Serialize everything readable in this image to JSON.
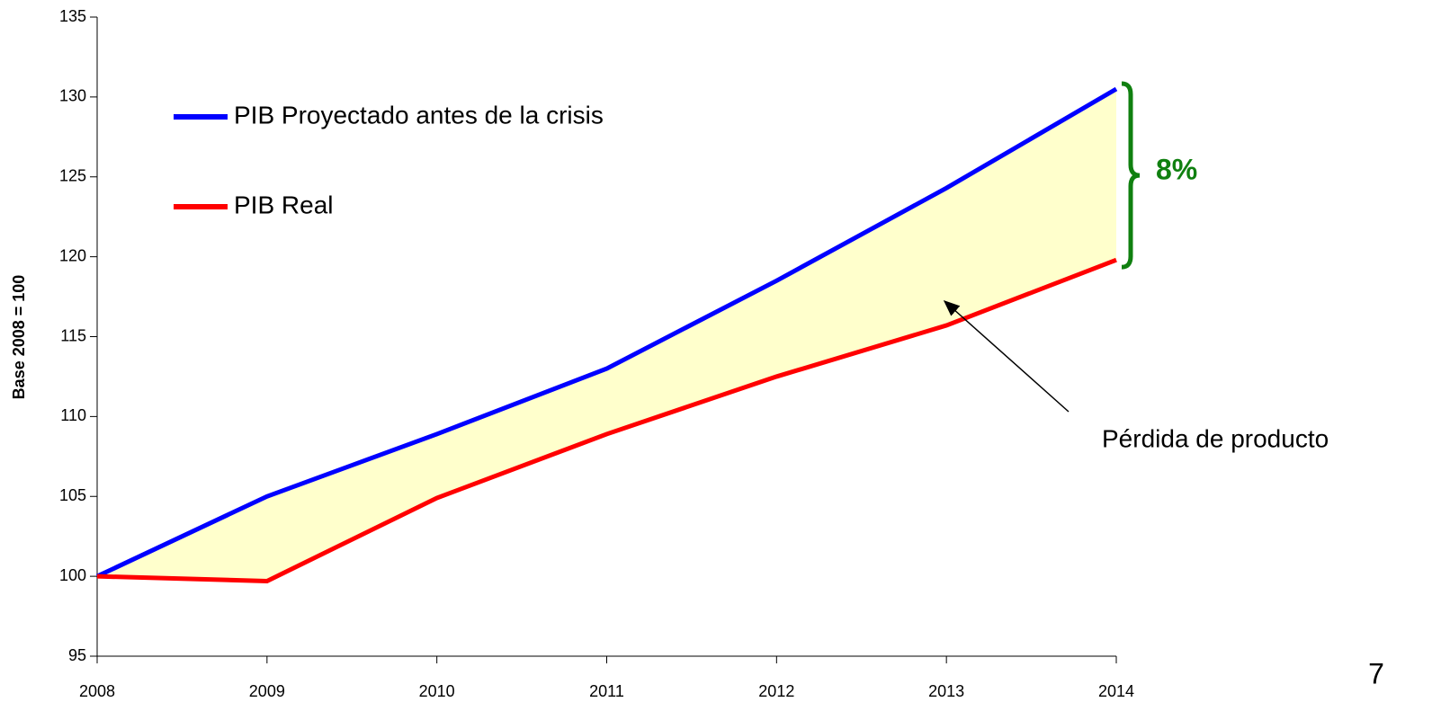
{
  "chart_data": {
    "type": "line",
    "y_label": "Base 2008 = 100",
    "x": [
      2008,
      2009,
      2010,
      2011,
      2012,
      2013,
      2014
    ],
    "series": [
      {
        "name": "PIB Proyectado antes de la crisis",
        "color": "#0000ff",
        "values": [
          100,
          105.0,
          108.9,
          113.0,
          118.5,
          124.3,
          130.5
        ]
      },
      {
        "name": "PIB Real",
        "color": "#ff0000",
        "values": [
          100,
          99.7,
          104.9,
          108.9,
          112.5,
          115.7,
          119.8
        ]
      }
    ],
    "xlim": [
      2008,
      2014
    ],
    "xticks": [
      2008,
      2009,
      2010,
      2011,
      2012,
      2013,
      2014
    ],
    "ylim": [
      95,
      135
    ],
    "yticks": [
      95,
      100,
      105,
      110,
      115,
      120,
      125,
      130,
      135
    ],
    "grid": false,
    "gap_fill": "#ffffcc",
    "annotations": [
      "8%",
      "Pérdida de producto"
    ]
  },
  "page_number": "7"
}
